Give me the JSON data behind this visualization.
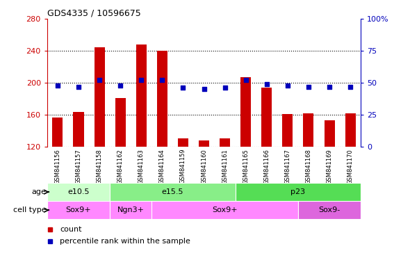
{
  "title": "GDS4335 / 10596675",
  "samples": [
    "GSM841156",
    "GSM841157",
    "GSM841158",
    "GSM841162",
    "GSM841163",
    "GSM841164",
    "GSM841159",
    "GSM841160",
    "GSM841161",
    "GSM841165",
    "GSM841166",
    "GSM841167",
    "GSM841168",
    "GSM841169",
    "GSM841170"
  ],
  "counts": [
    157,
    164,
    244,
    181,
    248,
    240,
    131,
    128,
    131,
    207,
    194,
    161,
    162,
    153,
    162
  ],
  "percentiles": [
    48,
    47,
    52,
    48,
    52,
    52,
    46,
    45,
    46,
    52,
    49,
    48,
    47,
    47,
    47
  ],
  "ylim_left": [
    120,
    280
  ],
  "ylim_right": [
    0,
    100
  ],
  "yticks_left": [
    120,
    160,
    200,
    240,
    280
  ],
  "yticks_right": [
    0,
    25,
    50,
    75,
    100
  ],
  "bar_color": "#cc0000",
  "dot_color": "#0000bb",
  "grid_color": "#000000",
  "left_tick_color": "#cc0000",
  "right_tick_color": "#0000bb",
  "age_groups": [
    {
      "label": "e10.5",
      "start": 0,
      "end": 3,
      "color": "#ccffcc"
    },
    {
      "label": "e15.5",
      "start": 3,
      "end": 9,
      "color": "#88ee88"
    },
    {
      "label": "p23",
      "start": 9,
      "end": 15,
      "color": "#55dd55"
    }
  ],
  "cell_type_groups": [
    {
      "label": "Sox9+",
      "start": 0,
      "end": 3,
      "color": "#ff88ff"
    },
    {
      "label": "Ngn3+",
      "start": 3,
      "end": 5,
      "color": "#ff88ff"
    },
    {
      "label": "Sox9+",
      "start": 5,
      "end": 12,
      "color": "#ff88ff"
    },
    {
      "label": "Sox9-",
      "start": 12,
      "end": 15,
      "color": "#dd66dd"
    }
  ],
  "age_label": "age",
  "cell_type_label": "cell type",
  "legend_count_label": "count",
  "legend_pct_label": "percentile rank within the sample",
  "bg_color": "#ffffff",
  "tick_bg_color": "#cccccc"
}
